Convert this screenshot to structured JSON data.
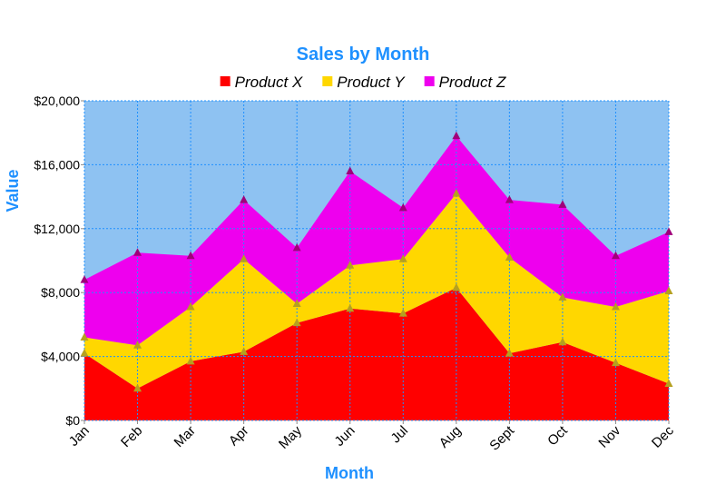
{
  "chart_data": {
    "type": "area",
    "stacked": true,
    "title": "Sales by Month",
    "xlabel": "Month",
    "ylabel": "Value",
    "categories": [
      "Jan",
      "Feb",
      "Mar",
      "Apr",
      "May",
      "Jun",
      "Jul",
      "Aug",
      "Sept",
      "Oct",
      "Nov",
      "Dec"
    ],
    "series": [
      {
        "name": "Product X",
        "color": "#ff0000",
        "marker_color": "#b5a020",
        "values": [
          4200,
          2000,
          3700,
          4300,
          6100,
          7000,
          6700,
          8300,
          4200,
          4900,
          3600,
          2300
        ]
      },
      {
        "name": "Product Y",
        "color": "#ffd700",
        "marker_color": "#b5a020",
        "values": [
          1000,
          2700,
          3400,
          5800,
          1200,
          2700,
          3400,
          5900,
          6000,
          2800,
          3500,
          5800
        ]
      },
      {
        "name": "Product Z",
        "color": "#ee00ee",
        "marker_color": "#a0007a",
        "values": [
          3600,
          5800,
          3200,
          3700,
          3500,
          5900,
          3200,
          3600,
          3600,
          5800,
          3200,
          3700
        ]
      }
    ],
    "ylim": [
      0,
      20000
    ],
    "yticks": [
      "$0",
      "$4,000",
      "$8,000",
      "$12,000",
      "$16,000",
      "$20,000"
    ],
    "ytick_values": [
      0,
      4000,
      8000,
      12000,
      16000,
      20000
    ],
    "grid": true,
    "legend_position": "top",
    "plot_background": "#8ec2f2",
    "title_color": "#1e90ff",
    "grid_color": "#1e90ff"
  }
}
